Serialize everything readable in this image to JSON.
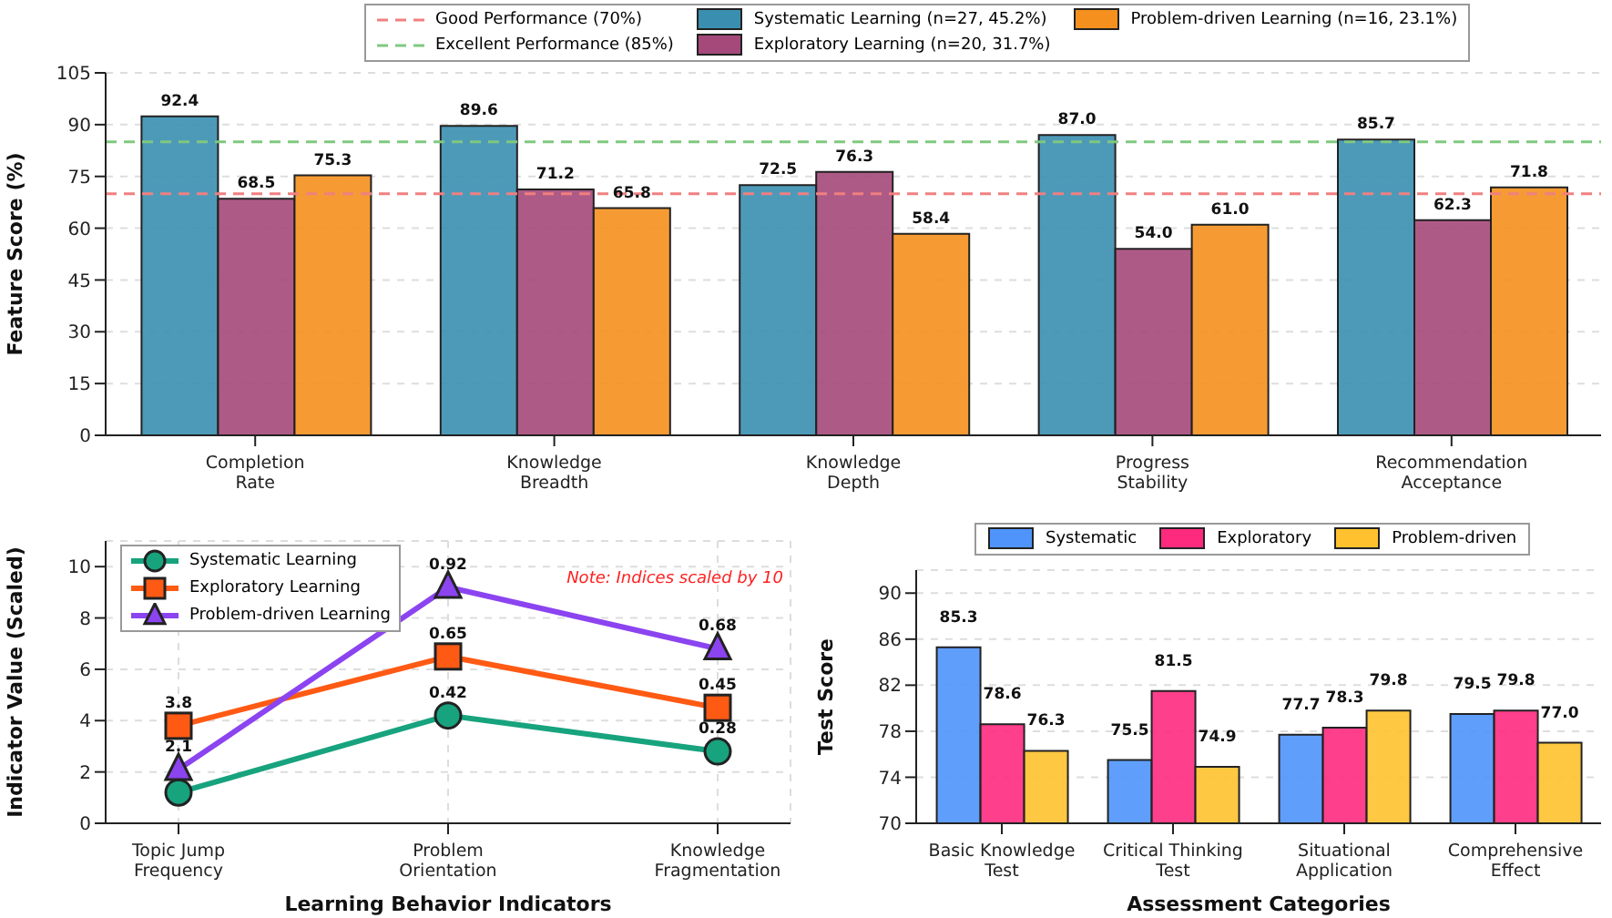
{
  "chart_data": [
    {
      "type": "bar",
      "ylabel": "Feature Score (%)",
      "categories": [
        "Completion\nRate",
        "Knowledge\nBreadth",
        "Knowledge\nDepth",
        "Progress\nStability",
        "Recommendation\nAcceptance"
      ],
      "series": [
        {
          "name": "Systematic Learning (n=27, 45.2%)",
          "color": "#3a8fb0",
          "values": [
            92.4,
            89.6,
            72.5,
            87.0,
            85.7
          ],
          "value_labels": [
            "92.4",
            "89.6",
            "72.5",
            "87.0",
            "85.7"
          ]
        },
        {
          "name": "Exploratory Learning (n=20, 31.7%)",
          "color": "#a5487a",
          "values": [
            68.5,
            71.2,
            76.3,
            54.0,
            62.3
          ],
          "value_labels": [
            "68.5",
            "71.2",
            "76.3",
            "54.0",
            "62.3"
          ]
        },
        {
          "name": "Problem-driven Learning (n=16, 23.1%)",
          "color": "#f5901e",
          "values": [
            75.3,
            65.8,
            58.4,
            61.0,
            71.8
          ],
          "value_labels": [
            "75.3",
            "65.8",
            "58.4",
            "61.0",
            "71.8"
          ]
        }
      ],
      "ylim": [
        0,
        105
      ],
      "yticks": [
        0,
        15,
        30,
        45,
        60,
        75,
        90,
        105
      ],
      "grid": "y",
      "legend": "top",
      "ref_lines": [
        {
          "axis": "y",
          "value": 70,
          "label": "Good Performance (70%)",
          "color": "#f08080",
          "line_style": "dashed"
        },
        {
          "axis": "y",
          "value": 85,
          "label": "Excellent Performance (85%)",
          "color": "#80c880",
          "line_style": "dashed"
        }
      ]
    },
    {
      "type": "line",
      "xlabel": "Learning Behavior Indicators",
      "ylabel": "Indicator Value (Scaled)",
      "categories": [
        "Topic Jump\nFrequency",
        "Problem\nOrientation",
        "Knowledge\nFragmentation"
      ],
      "series": [
        {
          "name": "Systematic Learning",
          "color": "#17a37e",
          "marker": "circle",
          "values": [
            1.2,
            4.2,
            2.8
          ],
          "value_labels": [
            null,
            null,
            null
          ]
        },
        {
          "name": "Exploratory Learning",
          "color": "#ff5a14",
          "marker": "square",
          "values": [
            3.8,
            6.5,
            4.5
          ],
          "value_labels": [
            "3.8",
            null,
            null
          ]
        },
        {
          "name": "Problem-driven Learning",
          "color": "#8b44f0",
          "marker": "triangle",
          "values": [
            2.1,
            9.2,
            6.8
          ],
          "value_labels": [
            "2.1",
            null,
            null
          ]
        }
      ],
      "ylim": [
        0,
        11
      ],
      "yticks": [
        0,
        2,
        4,
        6,
        8,
        10
      ],
      "grid": true,
      "legend": "top left",
      "annotations": [
        "Note: Indices scaled by 10",
        {
          "text": "0.42",
          "x": "Problem\nOrientation",
          "y": 4.2
        },
        {
          "text": "0.28",
          "x": "Knowledge\nFragmentation",
          "y": 2.8
        },
        {
          "text": "0.65",
          "x": "Problem\nOrientation",
          "y": 6.5
        },
        {
          "text": "0.45",
          "x": "Knowledge\nFragmentation",
          "y": 4.5
        },
        {
          "text": "0.92",
          "x": "Problem\nOrientation",
          "y": 9.2
        },
        {
          "text": "0.68",
          "x": "Knowledge\nFragmentation",
          "y": 6.8
        }
      ]
    },
    {
      "type": "bar",
      "xlabel": "Assessment Categories",
      "ylabel": "Test Score",
      "categories": [
        "Basic Knowledge\nTest",
        "Critical Thinking\nTest",
        "Situational\nApplication",
        "Comprehensive\nEffect"
      ],
      "series": [
        {
          "name": "Systematic",
          "color": "#4f94fb",
          "values": [
            85.3,
            75.5,
            77.7,
            79.5
          ],
          "value_labels": [
            "85.3",
            "75.5",
            "77.7",
            "79.5"
          ]
        },
        {
          "name": "Exploratory",
          "color": "#fe2a7e",
          "values": [
            78.6,
            81.5,
            78.3,
            79.8
          ],
          "value_labels": [
            "78.6",
            "81.5",
            "78.3",
            "79.8"
          ]
        },
        {
          "name": "Problem-driven",
          "color": "#ffc22e",
          "values": [
            76.3,
            74.9,
            79.8,
            77.0
          ],
          "value_labels": [
            "76.3",
            "74.9",
            "79.8",
            "77.0"
          ]
        }
      ],
      "ylim": [
        70,
        92
      ],
      "yticks": [
        70,
        74,
        78,
        82,
        86,
        90
      ],
      "grid": "y",
      "legend": "top"
    }
  ]
}
